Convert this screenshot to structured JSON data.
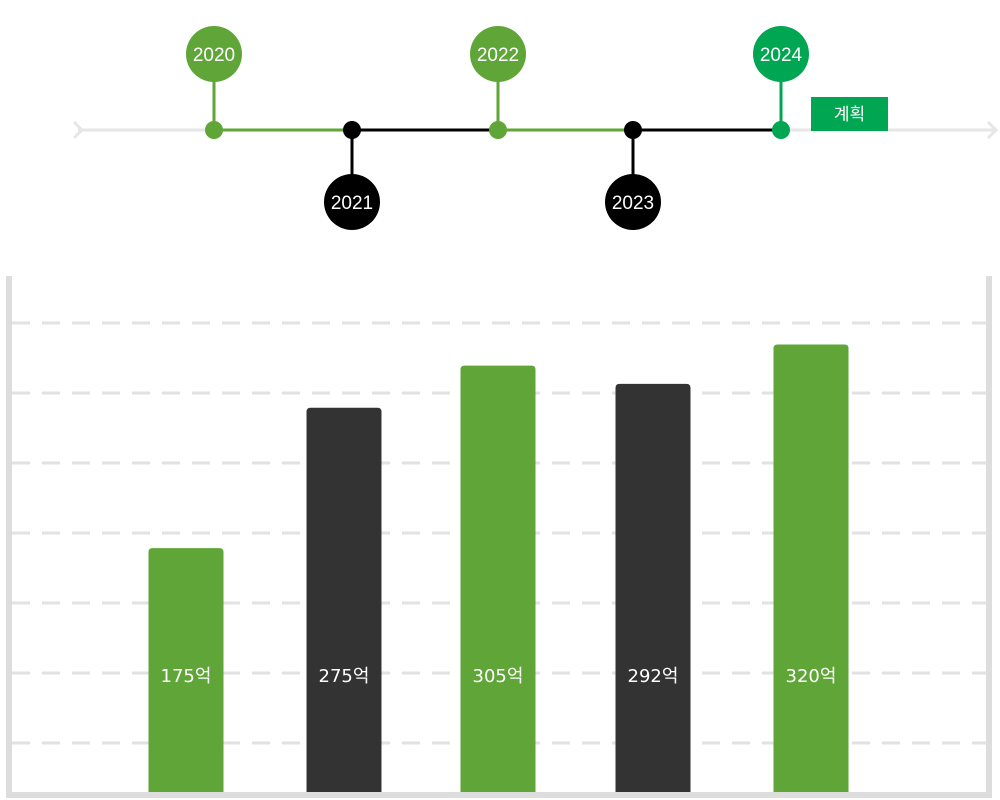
{
  "colors": {
    "green": "#5fa537",
    "dark": "#333333",
    "black": "#000000",
    "accent_green": "#00a651",
    "track": "#e6e6e6",
    "grid": "#e2e2e2",
    "frame": "#dddddd"
  },
  "timeline": {
    "plan_badge": "계획",
    "items": [
      {
        "year": "2020",
        "position": "above",
        "style": "green"
      },
      {
        "year": "2021",
        "position": "below",
        "style": "black"
      },
      {
        "year": "2022",
        "position": "above",
        "style": "green"
      },
      {
        "year": "2023",
        "position": "below",
        "style": "black"
      },
      {
        "year": "2024",
        "position": "above",
        "style": "accent_green"
      }
    ]
  },
  "chart_data": {
    "type": "bar",
    "categories": [
      "2020",
      "2021",
      "2022",
      "2023",
      "2024"
    ],
    "values": [
      175,
      275,
      305,
      292,
      320
    ],
    "unit": "억",
    "data_labels": [
      "175억",
      "275억",
      "305억",
      "292억",
      "320억"
    ],
    "bar_colors": [
      "green",
      "dark",
      "green",
      "dark",
      "green"
    ],
    "ylim": [
      0,
      360
    ],
    "grid": true,
    "grid_style": "dashed"
  }
}
